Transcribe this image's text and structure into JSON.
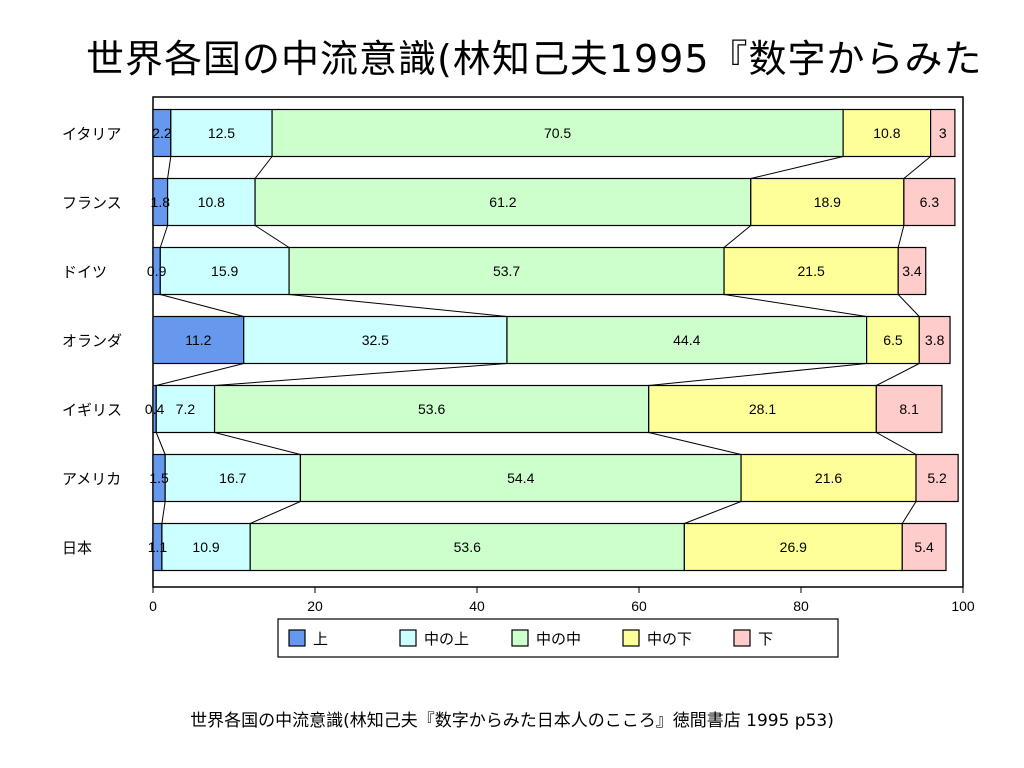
{
  "slide": {
    "title": "世界各国の中流意識(林知己夫1995『数字からみた",
    "caption": "世界各国の中流意識(林知己夫『数字からみた日本人のこころ』徳間書店 1995 p53)"
  },
  "chart_data": {
    "type": "bar",
    "stacked": "horizontal-100",
    "categories": [
      "イタリア",
      "フランス",
      "ドイツ",
      "オランダ",
      "イギリス",
      "アメリカ",
      "日本"
    ],
    "series": [
      {
        "name": "上",
        "color": "#6699ee",
        "values": [
          2.2,
          1.8,
          0.9,
          11.2,
          0.4,
          1.5,
          1.1
        ]
      },
      {
        "name": "中の上",
        "color": "#ccffff",
        "values": [
          12.5,
          10.8,
          15.9,
          32.5,
          7.2,
          16.7,
          10.9
        ]
      },
      {
        "name": "中の中",
        "color": "#ccffcc",
        "values": [
          70.5,
          61.2,
          53.7,
          44.4,
          53.6,
          54.4,
          53.6
        ]
      },
      {
        "name": "中の下",
        "color": "#ffff99",
        "values": [
          10.8,
          18.9,
          21.5,
          6.5,
          28.1,
          21.6,
          26.9
        ]
      },
      {
        "name": "下",
        "color": "#ffcccc",
        "values": [
          3,
          6.3,
          3.4,
          3.8,
          8.1,
          5.2,
          5.4
        ]
      }
    ],
    "xticks": [
      0,
      20,
      40,
      60,
      80,
      100
    ],
    "xlim": [
      0,
      100
    ],
    "series_lines": true,
    "legend_position": "bottom"
  }
}
